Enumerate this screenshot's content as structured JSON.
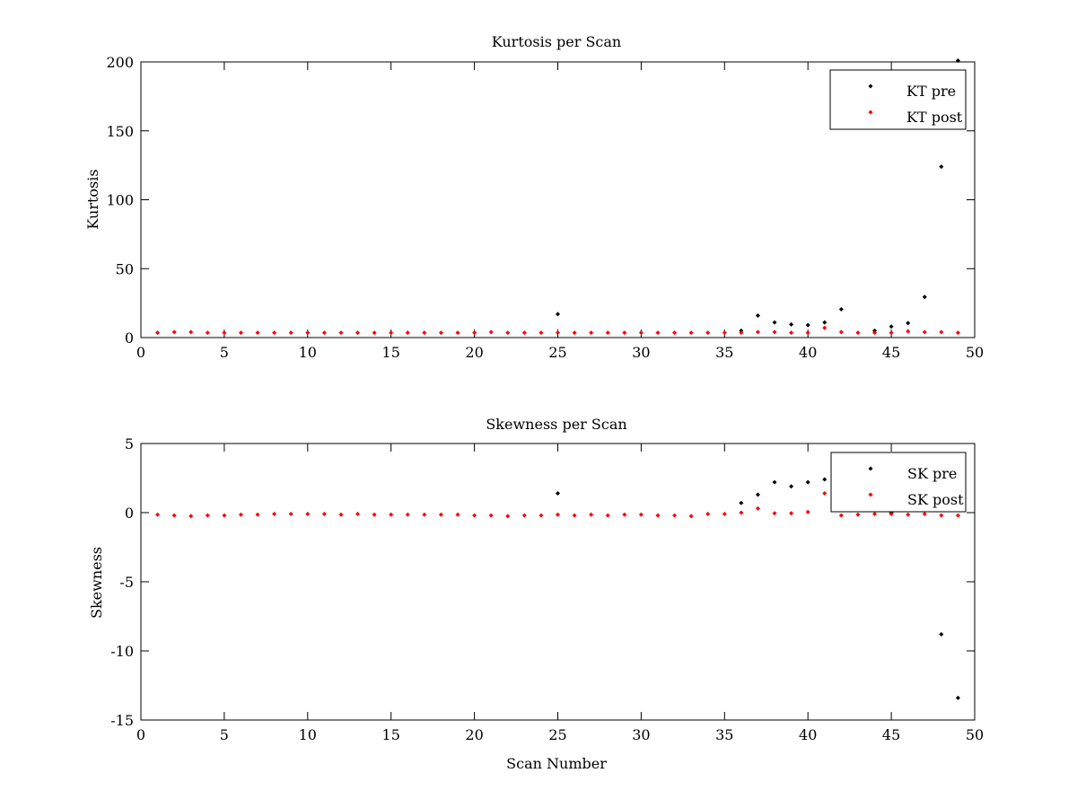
{
  "chart_data": [
    {
      "type": "scatter",
      "title": "Kurtosis per Scan",
      "xlabel": "",
      "ylabel": "Kurtosis",
      "xlim": [
        0,
        50
      ],
      "ylim": [
        0,
        200
      ],
      "xticks": [
        0,
        5,
        10,
        15,
        20,
        25,
        30,
        35,
        40,
        45,
        50
      ],
      "yticks": [
        0,
        50,
        100,
        150,
        200
      ],
      "legend_position": "top-right",
      "grid": false,
      "series": [
        {
          "name": "KT pre",
          "color": "#000000",
          "x": [
            25,
            36,
            37,
            38,
            39,
            40,
            41,
            42,
            44,
            45,
            46,
            47,
            48,
            49
          ],
          "y": [
            17,
            5,
            16,
            11,
            9.5,
            9,
            11,
            20.5,
            5,
            8,
            10.5,
            29.5,
            124,
            201
          ]
        },
        {
          "name": "KT post",
          "color": "#ff0000",
          "x": [
            1,
            2,
            3,
            4,
            5,
            6,
            7,
            8,
            9,
            10,
            11,
            12,
            13,
            14,
            15,
            16,
            17,
            18,
            19,
            20,
            21,
            22,
            23,
            24,
            25,
            26,
            27,
            28,
            29,
            30,
            31,
            32,
            33,
            34,
            35,
            36,
            37,
            38,
            39,
            40,
            41,
            42,
            43,
            44,
            45,
            46,
            47,
            48,
            49
          ],
          "y": [
            3.5,
            4,
            4,
            3.5,
            3.5,
            3.5,
            3.5,
            3.5,
            3.5,
            3.5,
            3.5,
            3.5,
            3.5,
            3.5,
            3.5,
            3.5,
            3.5,
            3.5,
            3.5,
            3.5,
            4,
            3.5,
            3.5,
            3.5,
            3.5,
            3.5,
            3.5,
            3.5,
            3.5,
            3.5,
            3.5,
            3.5,
            3.5,
            3.5,
            3.5,
            3.5,
            4,
            4,
            3.5,
            3.5,
            7,
            4,
            3.5,
            3.5,
            3.5,
            4.5,
            4,
            4,
            3.5
          ]
        }
      ]
    },
    {
      "type": "scatter",
      "title": "Skewness per Scan",
      "xlabel": "Scan Number",
      "ylabel": "Skewness",
      "xlim": [
        0,
        50
      ],
      "ylim": [
        -15,
        5
      ],
      "xticks": [
        0,
        5,
        10,
        15,
        20,
        25,
        30,
        35,
        40,
        45,
        50
      ],
      "yticks": [
        -15,
        -10,
        -5,
        0,
        5
      ],
      "legend_position": "top-right",
      "grid": false,
      "series": [
        {
          "name": "SK pre",
          "color": "#000000",
          "x": [
            25,
            36,
            37,
            38,
            39,
            40,
            41,
            45,
            48,
            49
          ],
          "y": [
            1.4,
            0.7,
            1.3,
            2.2,
            1.9,
            2.2,
            2.4,
            0,
            -8.8,
            -13.4
          ]
        },
        {
          "name": "SK post",
          "color": "#ff0000",
          "x": [
            1,
            2,
            3,
            4,
            5,
            6,
            7,
            8,
            9,
            10,
            11,
            12,
            13,
            14,
            15,
            16,
            17,
            18,
            19,
            20,
            21,
            22,
            23,
            24,
            25,
            26,
            27,
            28,
            29,
            30,
            31,
            32,
            33,
            34,
            35,
            36,
            37,
            38,
            39,
            40,
            41,
            42,
            43,
            44,
            45,
            46,
            47,
            48,
            49
          ],
          "y": [
            -0.15,
            -0.2,
            -0.25,
            -0.2,
            -0.2,
            -0.15,
            -0.15,
            -0.1,
            -0.1,
            -0.1,
            -0.1,
            -0.15,
            -0.1,
            -0.15,
            -0.15,
            -0.15,
            -0.15,
            -0.15,
            -0.15,
            -0.2,
            -0.2,
            -0.25,
            -0.2,
            -0.2,
            -0.15,
            -0.2,
            -0.15,
            -0.2,
            -0.15,
            -0.15,
            -0.2,
            -0.2,
            -0.25,
            -0.1,
            -0.1,
            0,
            0.3,
            -0.05,
            -0.05,
            0.05,
            1.4,
            -0.2,
            -0.15,
            -0.1,
            -0.1,
            -0.15,
            -0.1,
            -0.2,
            -0.2
          ]
        }
      ]
    }
  ]
}
